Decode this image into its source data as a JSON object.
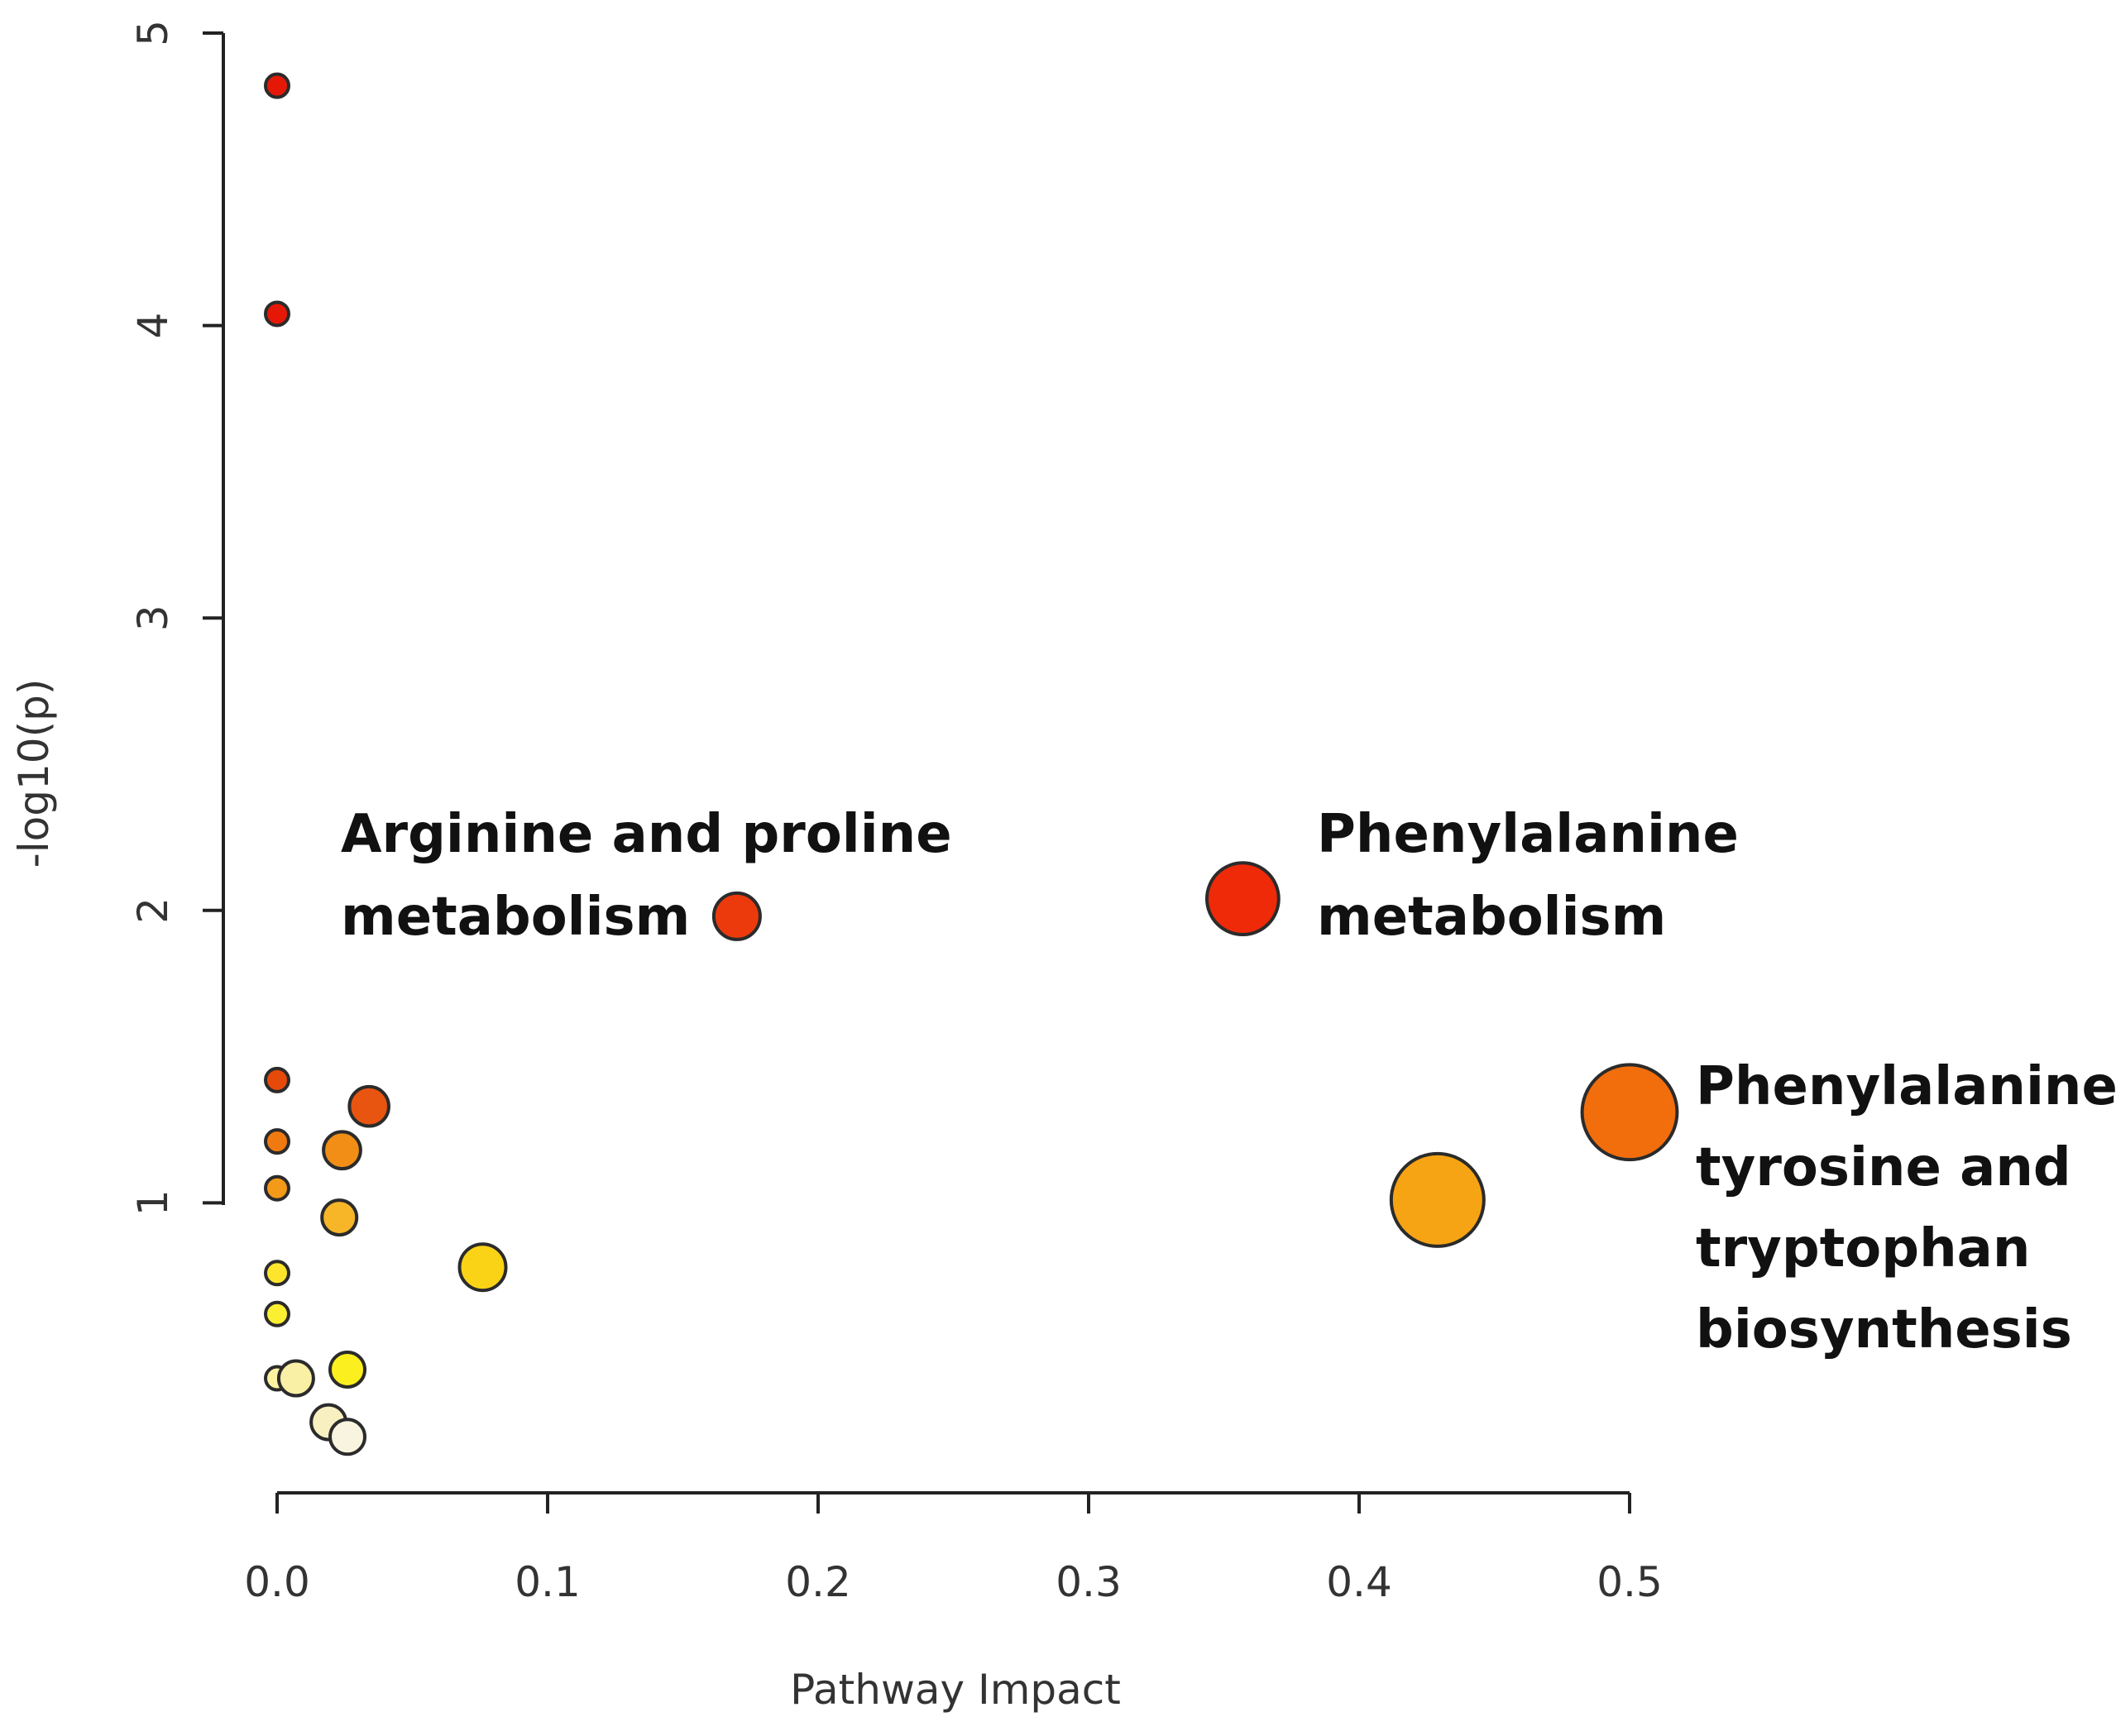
{
  "chart_data": {
    "type": "scatter",
    "title": "",
    "xlabel": "Pathway Impact",
    "ylabel": "-log10(p)",
    "xlim": [
      0.0,
      0.5
    ],
    "ylim": [
      0,
      5
    ],
    "xticks": [
      {
        "value": 0.0,
        "label": "0.0"
      },
      {
        "value": 0.1,
        "label": "0.1"
      },
      {
        "value": 0.2,
        "label": "0.2"
      },
      {
        "value": 0.3,
        "label": "0.3"
      },
      {
        "value": 0.4,
        "label": "0.4"
      },
      {
        "value": 0.5,
        "label": "0.5"
      }
    ],
    "yticks": [
      {
        "value": 1,
        "label": "1"
      },
      {
        "value": 2,
        "label": "2"
      },
      {
        "value": 3,
        "label": "3"
      },
      {
        "value": 4,
        "label": "4"
      },
      {
        "value": 5,
        "label": "5"
      }
    ],
    "grid": false,
    "legend": "none",
    "color_encoding": "-log10(p), white-yellow (low) to red (high)",
    "size_encoding": "pathway impact",
    "points": [
      {
        "x": 0.0,
        "y": 4.82,
        "size": 1.0,
        "color": "#e51808"
      },
      {
        "x": 0.0,
        "y": 4.04,
        "size": 1.0,
        "color": "#e51808"
      },
      {
        "x": 0.0,
        "y": 1.42,
        "size": 1.0,
        "color": "#e64a0a"
      },
      {
        "x": 0.0,
        "y": 1.21,
        "size": 1.0,
        "color": "#f07a10"
      },
      {
        "x": 0.0,
        "y": 1.05,
        "size": 1.0,
        "color": "#f39a18"
      },
      {
        "x": 0.0,
        "y": 0.76,
        "size": 1.0,
        "color": "#fde52c"
      },
      {
        "x": 0.0,
        "y": 0.62,
        "size": 1.0,
        "color": "#fbef32"
      },
      {
        "x": 0.0,
        "y": 0.4,
        "size": 1.0,
        "color": "#fbf3a2"
      },
      {
        "x": 0.007,
        "y": 0.4,
        "size": 1.5,
        "color": "#f9efa5"
      },
      {
        "x": 0.019,
        "y": 0.25,
        "size": 1.5,
        "color": "#f8f0c0"
      },
      {
        "x": 0.026,
        "y": 0.2,
        "size": 1.5,
        "color": "#f8f4e0"
      },
      {
        "x": 0.026,
        "y": 0.43,
        "size": 1.5,
        "color": "#fbef1f"
      },
      {
        "x": 0.023,
        "y": 0.95,
        "size": 1.5,
        "color": "#f6b628"
      },
      {
        "x": 0.024,
        "y": 1.18,
        "size": 1.6,
        "color": "#f28e16"
      },
      {
        "x": 0.034,
        "y": 1.33,
        "size": 1.7,
        "color": "#e85510"
      },
      {
        "x": 0.076,
        "y": 0.78,
        "size": 2.0,
        "color": "#fbd316"
      },
      {
        "x": 0.17,
        "y": 1.98,
        "size": 2.0,
        "color": "#ec3a0c"
      },
      {
        "x": 0.357,
        "y": 2.04,
        "size": 3.1,
        "color": "#ee2a08"
      },
      {
        "x": 0.429,
        "y": 1.01,
        "size": 4.0,
        "color": "#f7a414"
      },
      {
        "x": 0.5,
        "y": 1.31,
        "size": 4.1,
        "color": "#f26e0c"
      }
    ],
    "annotations": [
      {
        "lines": [
          "Arginine and proline",
          "metabolism"
        ]
      },
      {
        "lines": [
          "Phenylalanine",
          "metabolism"
        ]
      },
      {
        "lines": [
          "Phenylalanine,",
          "tyrosine and",
          "tryptophan",
          "biosynthesis"
        ]
      }
    ]
  }
}
